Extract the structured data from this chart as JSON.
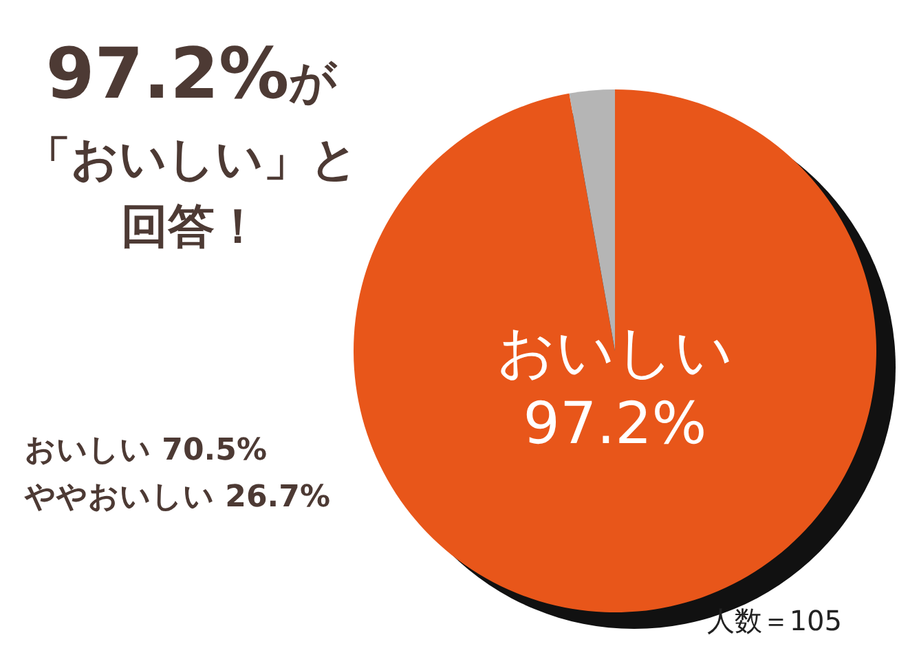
{
  "chart_data": {
    "type": "pie",
    "title": "97.2%が「おいしい」と回答！",
    "categories": [
      "おいしい",
      null
    ],
    "values": [
      97.2,
      2.8
    ],
    "colors": [
      "#e8561a",
      "#b5b5b5"
    ],
    "value_labels": [
      "97.2%",
      null
    ],
    "annotations": [
      "おいしい 70.5%",
      "ややおいしい 26.7%",
      "人数＝105"
    ]
  }
}
